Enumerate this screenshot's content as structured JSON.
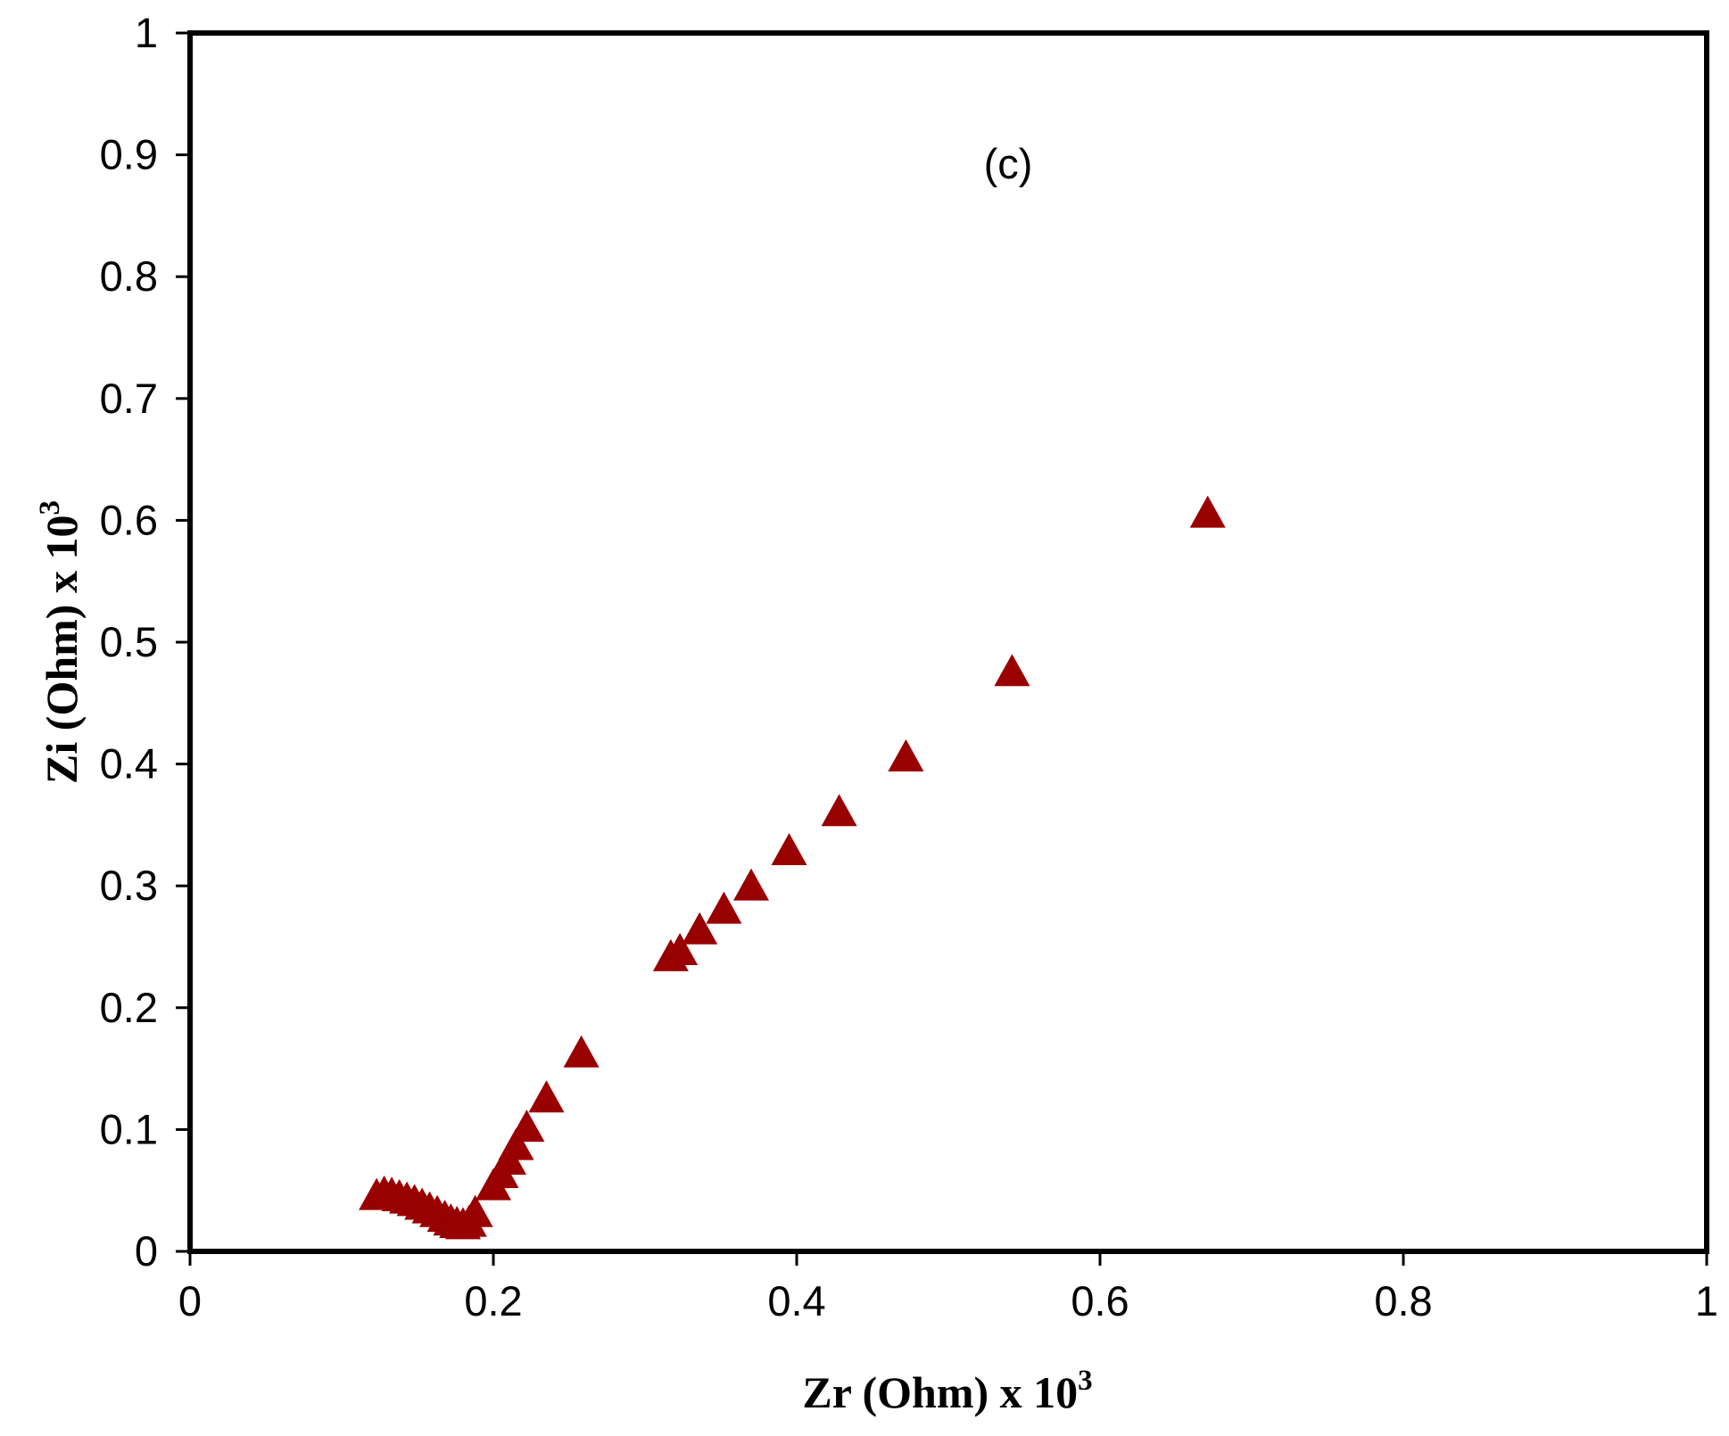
{
  "chart_data": {
    "type": "scatter",
    "annotation": "(c)",
    "xlabel": "Zr (Ohm) x 10",
    "xlabel_sup": "3",
    "ylabel": "Zi (Ohm) x 10",
    "ylabel_sup": "3",
    "xlim": [
      0,
      1
    ],
    "ylim": [
      0,
      1
    ],
    "x_ticks": [
      "0",
      "0.2",
      "0.4",
      "0.6",
      "0.8",
      "1"
    ],
    "y_ticks": [
      "0",
      "0.1",
      "0.2",
      "0.3",
      "0.4",
      "0.5",
      "0.6",
      "0.7",
      "0.8",
      "0.9",
      "1"
    ],
    "grid": false,
    "marker": "triangle",
    "marker_color": "#990000",
    "series": [
      {
        "x": [
          0.123,
          0.128,
          0.133,
          0.138,
          0.143,
          0.148,
          0.153,
          0.158,
          0.163,
          0.168,
          0.172,
          0.176,
          0.18,
          0.184,
          0.188,
          0.2,
          0.205,
          0.21,
          0.215,
          0.222,
          0.235,
          0.258,
          0.317,
          0.323,
          0.336,
          0.352,
          0.37,
          0.395,
          0.428,
          0.472,
          0.542,
          0.671
        ],
        "y": [
          0.044,
          0.046,
          0.045,
          0.043,
          0.041,
          0.039,
          0.036,
          0.033,
          0.03,
          0.026,
          0.023,
          0.021,
          0.02,
          0.022,
          0.03,
          0.052,
          0.062,
          0.073,
          0.085,
          0.1,
          0.124,
          0.161,
          0.24,
          0.245,
          0.262,
          0.279,
          0.298,
          0.327,
          0.359,
          0.404,
          0.474,
          0.604
        ]
      }
    ]
  }
}
